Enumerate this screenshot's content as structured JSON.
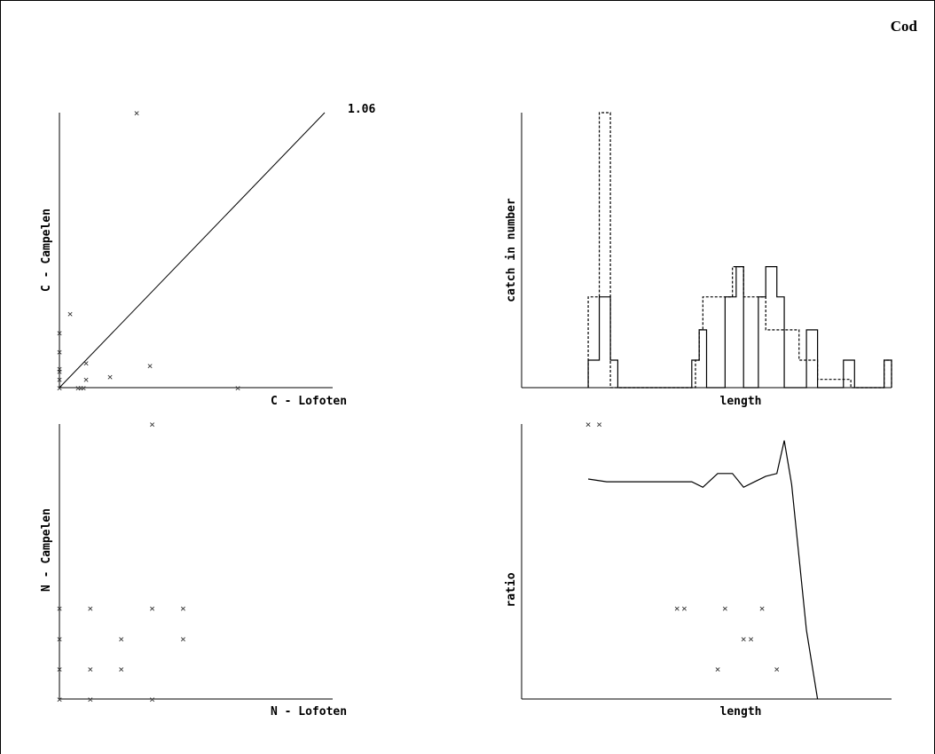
{
  "page": {
    "species": "Cod"
  },
  "chart_data": [
    {
      "id": "c_scatter",
      "type": "scatter",
      "xlabel": "C - Lofoten",
      "ylabel": "C - Campelen",
      "xlim": [
        0,
        100
      ],
      "ylim": [
        0,
        100
      ],
      "points": [
        [
          0,
          0
        ],
        [
          7,
          0
        ],
        [
          8,
          0
        ],
        [
          9,
          0
        ],
        [
          0,
          3
        ],
        [
          0,
          6
        ],
        [
          0,
          7
        ],
        [
          0,
          13
        ],
        [
          0,
          20
        ],
        [
          10,
          3
        ],
        [
          10,
          9
        ],
        [
          19,
          4
        ],
        [
          34,
          8
        ],
        [
          4,
          27
        ],
        [
          29,
          100
        ],
        [
          67,
          0
        ]
      ],
      "fit_line": {
        "slope": 1.06,
        "label": "1.06"
      }
    },
    {
      "id": "c_hist",
      "type": "line",
      "xlabel": "length",
      "ylabel": "catch in number",
      "xlim": [
        0,
        100
      ],
      "ylim": [
        0,
        100
      ],
      "series": [
        {
          "style": "solid",
          "steps": [
            [
              18,
              10
            ],
            [
              21,
              33
            ],
            [
              24,
              10
            ],
            [
              26,
              0
            ],
            [
              45,
              0
            ],
            [
              46,
              10
            ],
            [
              48,
              21
            ],
            [
              50,
              0
            ],
            [
              52,
              0
            ],
            [
              55,
              33
            ],
            [
              58,
              44
            ],
            [
              60,
              0
            ],
            [
              63,
              0
            ],
            [
              64,
              33
            ],
            [
              66,
              44
            ],
            [
              69,
              33
            ],
            [
              71,
              0
            ],
            [
              76,
              0
            ],
            [
              77,
              21
            ],
            [
              80,
              0
            ],
            [
              86,
              0
            ],
            [
              87,
              10
            ],
            [
              90,
              0
            ],
            [
              97,
              0
            ],
            [
              98,
              10
            ]
          ]
        },
        {
          "style": "dashed",
          "steps": [
            [
              18,
              33
            ],
            [
              21,
              100
            ],
            [
              24,
              0
            ],
            [
              46,
              0
            ],
            [
              47,
              10
            ],
            [
              48,
              21
            ],
            [
              49,
              33
            ],
            [
              51,
              33
            ],
            [
              53,
              33
            ],
            [
              57,
              44
            ],
            [
              60,
              33
            ],
            [
              64,
              33
            ],
            [
              66,
              21
            ],
            [
              72,
              21
            ],
            [
              75,
              10
            ],
            [
              78,
              10
            ],
            [
              80,
              3
            ],
            [
              85,
              3
            ],
            [
              89,
              0
            ],
            [
              97,
              0
            ],
            [
              98,
              10
            ]
          ]
        }
      ]
    },
    {
      "id": "n_scatter",
      "type": "scatter",
      "xlabel": "N - Lofoten",
      "ylabel": "N - Campelen",
      "xlim": [
        0,
        100
      ],
      "ylim": [
        0,
        100
      ],
      "points": [
        [
          0,
          0
        ],
        [
          17,
          0
        ],
        [
          51,
          0
        ],
        [
          0,
          11
        ],
        [
          17,
          11
        ],
        [
          34,
          11
        ],
        [
          0,
          22
        ],
        [
          34,
          22
        ],
        [
          68,
          22
        ],
        [
          0,
          33
        ],
        [
          17,
          33
        ],
        [
          51,
          33
        ],
        [
          68,
          33
        ],
        [
          51,
          100
        ]
      ]
    },
    {
      "id": "n_ratio",
      "type": "line",
      "xlabel": "length",
      "ylabel": "ratio",
      "xlim": [
        0,
        100
      ],
      "ylim": [
        0,
        100
      ],
      "series": [
        {
          "style": "solid",
          "points": [
            [
              18,
              80
            ],
            [
              23,
              79
            ],
            [
              46,
              79
            ],
            [
              49,
              77
            ],
            [
              53,
              82
            ],
            [
              57,
              82
            ],
            [
              60,
              77
            ],
            [
              63,
              79
            ],
            [
              66,
              81
            ],
            [
              69,
              82
            ],
            [
              71,
              94
            ],
            [
              73,
              78
            ],
            [
              77,
              25
            ],
            [
              80,
              0
            ]
          ]
        }
      ],
      "markers": [
        [
          18,
          100
        ],
        [
          21,
          100
        ],
        [
          42,
          33
        ],
        [
          44,
          33
        ],
        [
          55,
          33
        ],
        [
          65,
          33
        ],
        [
          60,
          22
        ],
        [
          62,
          22
        ],
        [
          53,
          11
        ],
        [
          69,
          11
        ]
      ]
    }
  ]
}
